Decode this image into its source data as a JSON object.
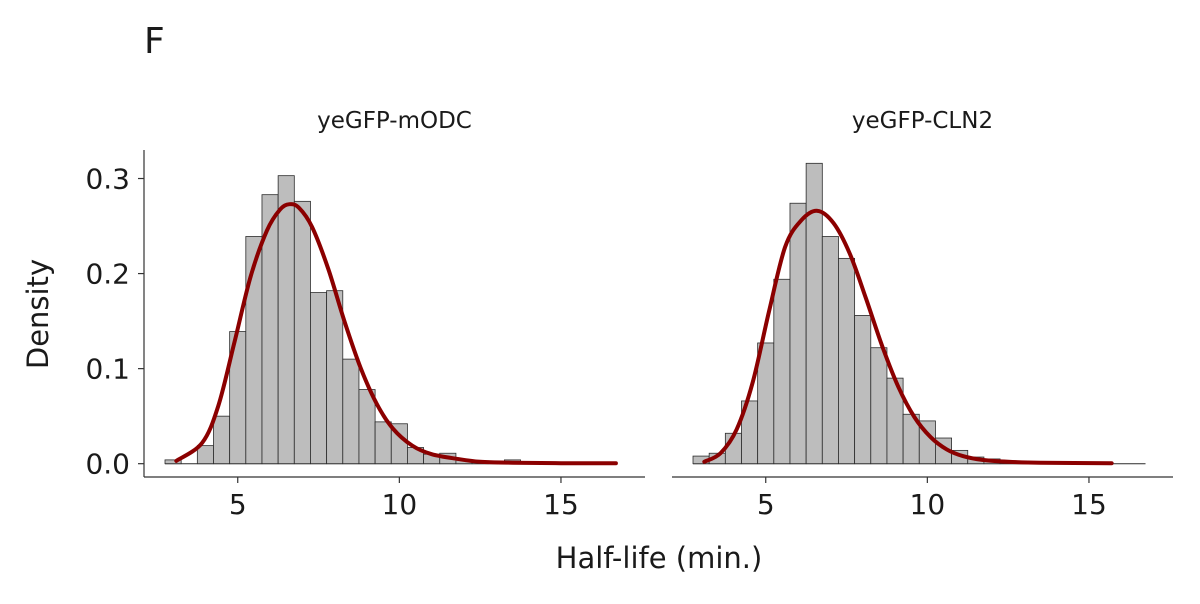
{
  "panel_label": "F",
  "xlabel": "Half-life (min.)",
  "ylabel": "Density",
  "colors": {
    "bar_fill": "#bdbdbd",
    "bar_stroke": "#2b2b2b",
    "density_curve": "#8b0000",
    "axis": "#333333"
  },
  "chart_data": [
    {
      "type": "bar",
      "panel": "yeGFP-mODC",
      "title": "yeGFP-mODC",
      "xlim": [
        2.1,
        17.6
      ],
      "ylim": [
        -0.014,
        0.33
      ],
      "xticks": [
        5,
        10,
        15
      ],
      "yticks": [
        0.0,
        0.1,
        0.2,
        0.3
      ],
      "ytick_labels": [
        "0.0",
        "0.1",
        "0.2",
        "0.3"
      ],
      "bin_width": 0.5,
      "bins": [
        {
          "x0": 2.75,
          "x1": 3.25,
          "value": 0.004
        },
        {
          "x0": 3.75,
          "x1": 4.25,
          "value": 0.019
        },
        {
          "x0": 4.25,
          "x1": 4.75,
          "value": 0.05
        },
        {
          "x0": 4.75,
          "x1": 5.25,
          "value": 0.139
        },
        {
          "x0": 5.25,
          "x1": 5.75,
          "value": 0.239
        },
        {
          "x0": 5.75,
          "x1": 6.25,
          "value": 0.283
        },
        {
          "x0": 6.25,
          "x1": 6.75,
          "value": 0.303
        },
        {
          "x0": 6.75,
          "x1": 7.25,
          "value": 0.276
        },
        {
          "x0": 7.25,
          "x1": 7.75,
          "value": 0.18
        },
        {
          "x0": 7.75,
          "x1": 8.25,
          "value": 0.182
        },
        {
          "x0": 8.25,
          "x1": 8.75,
          "value": 0.11
        },
        {
          "x0": 8.75,
          "x1": 9.25,
          "value": 0.078
        },
        {
          "x0": 9.25,
          "x1": 9.75,
          "value": 0.044
        },
        {
          "x0": 9.75,
          "x1": 10.25,
          "value": 0.042
        },
        {
          "x0": 10.25,
          "x1": 10.75,
          "value": 0.017
        },
        {
          "x0": 10.75,
          "x1": 11.25,
          "value": 0.01
        },
        {
          "x0": 11.25,
          "x1": 11.75,
          "value": 0.011
        },
        {
          "x0": 11.75,
          "x1": 12.25,
          "value": 0.004
        },
        {
          "x0": 12.25,
          "x1": 12.75,
          "value": 0.003
        },
        {
          "x0": 13.25,
          "x1": 13.75,
          "value": 0.004
        }
      ],
      "density_curve": {
        "x": [
          3.1,
          3.9,
          4.4,
          4.9,
          5.4,
          5.9,
          6.3,
          6.6,
          6.9,
          7.3,
          7.8,
          8.3,
          8.8,
          9.3,
          9.8,
          10.4,
          11.0,
          11.8,
          12.5,
          13.5,
          15.0,
          16.7
        ],
        "y": [
          0.003,
          0.022,
          0.061,
          0.128,
          0.197,
          0.245,
          0.267,
          0.273,
          0.269,
          0.249,
          0.205,
          0.15,
          0.101,
          0.063,
          0.037,
          0.019,
          0.01,
          0.005,
          0.002,
          0.001,
          0.0005,
          0.0005
        ]
      }
    },
    {
      "type": "bar",
      "panel": "yeGFP-CLN2",
      "title": "yeGFP-CLN2",
      "xlim": [
        2.1,
        17.6
      ],
      "ylim": [
        -0.014,
        0.33
      ],
      "xticks": [
        5,
        10,
        15
      ],
      "yticks": [
        0.0,
        0.1,
        0.2,
        0.3
      ],
      "ytick_labels": [
        "0.0",
        "0.1",
        "0.2",
        "0.3"
      ],
      "bin_width": 0.5,
      "bins": [
        {
          "x0": 2.75,
          "x1": 3.25,
          "value": 0.008
        },
        {
          "x0": 3.25,
          "x1": 3.75,
          "value": 0.011
        },
        {
          "x0": 3.75,
          "x1": 4.25,
          "value": 0.032
        },
        {
          "x0": 4.25,
          "x1": 4.75,
          "value": 0.066
        },
        {
          "x0": 4.75,
          "x1": 5.25,
          "value": 0.127
        },
        {
          "x0": 5.25,
          "x1": 5.75,
          "value": 0.194
        },
        {
          "x0": 5.75,
          "x1": 6.25,
          "value": 0.274
        },
        {
          "x0": 6.25,
          "x1": 6.75,
          "value": 0.316
        },
        {
          "x0": 6.75,
          "x1": 7.25,
          "value": 0.239
        },
        {
          "x0": 7.25,
          "x1": 7.75,
          "value": 0.216
        },
        {
          "x0": 7.75,
          "x1": 8.25,
          "value": 0.156
        },
        {
          "x0": 8.25,
          "x1": 8.75,
          "value": 0.122
        },
        {
          "x0": 8.75,
          "x1": 9.25,
          "value": 0.09
        },
        {
          "x0": 9.25,
          "x1": 9.75,
          "value": 0.052
        },
        {
          "x0": 9.75,
          "x1": 10.25,
          "value": 0.045
        },
        {
          "x0": 10.25,
          "x1": 10.75,
          "value": 0.027
        },
        {
          "x0": 10.75,
          "x1": 11.25,
          "value": 0.014
        },
        {
          "x0": 11.25,
          "x1": 11.75,
          "value": 0.007
        },
        {
          "x0": 11.75,
          "x1": 12.25,
          "value": 0.005
        },
        {
          "x0": 12.25,
          "x1": 15.75,
          "value": 0.001
        }
      ],
      "density_curve": {
        "x": [
          3.1,
          3.6,
          4.1,
          4.6,
          5.1,
          5.6,
          6.1,
          6.6,
          7.1,
          7.6,
          8.1,
          8.6,
          9.1,
          9.6,
          10.1,
          10.6,
          11.1,
          11.7,
          12.5,
          13.5,
          15.7
        ],
        "y": [
          0.002,
          0.011,
          0.036,
          0.086,
          0.16,
          0.228,
          0.256,
          0.266,
          0.253,
          0.221,
          0.174,
          0.124,
          0.081,
          0.049,
          0.028,
          0.015,
          0.008,
          0.004,
          0.002,
          0.001,
          0.0005
        ]
      }
    }
  ]
}
